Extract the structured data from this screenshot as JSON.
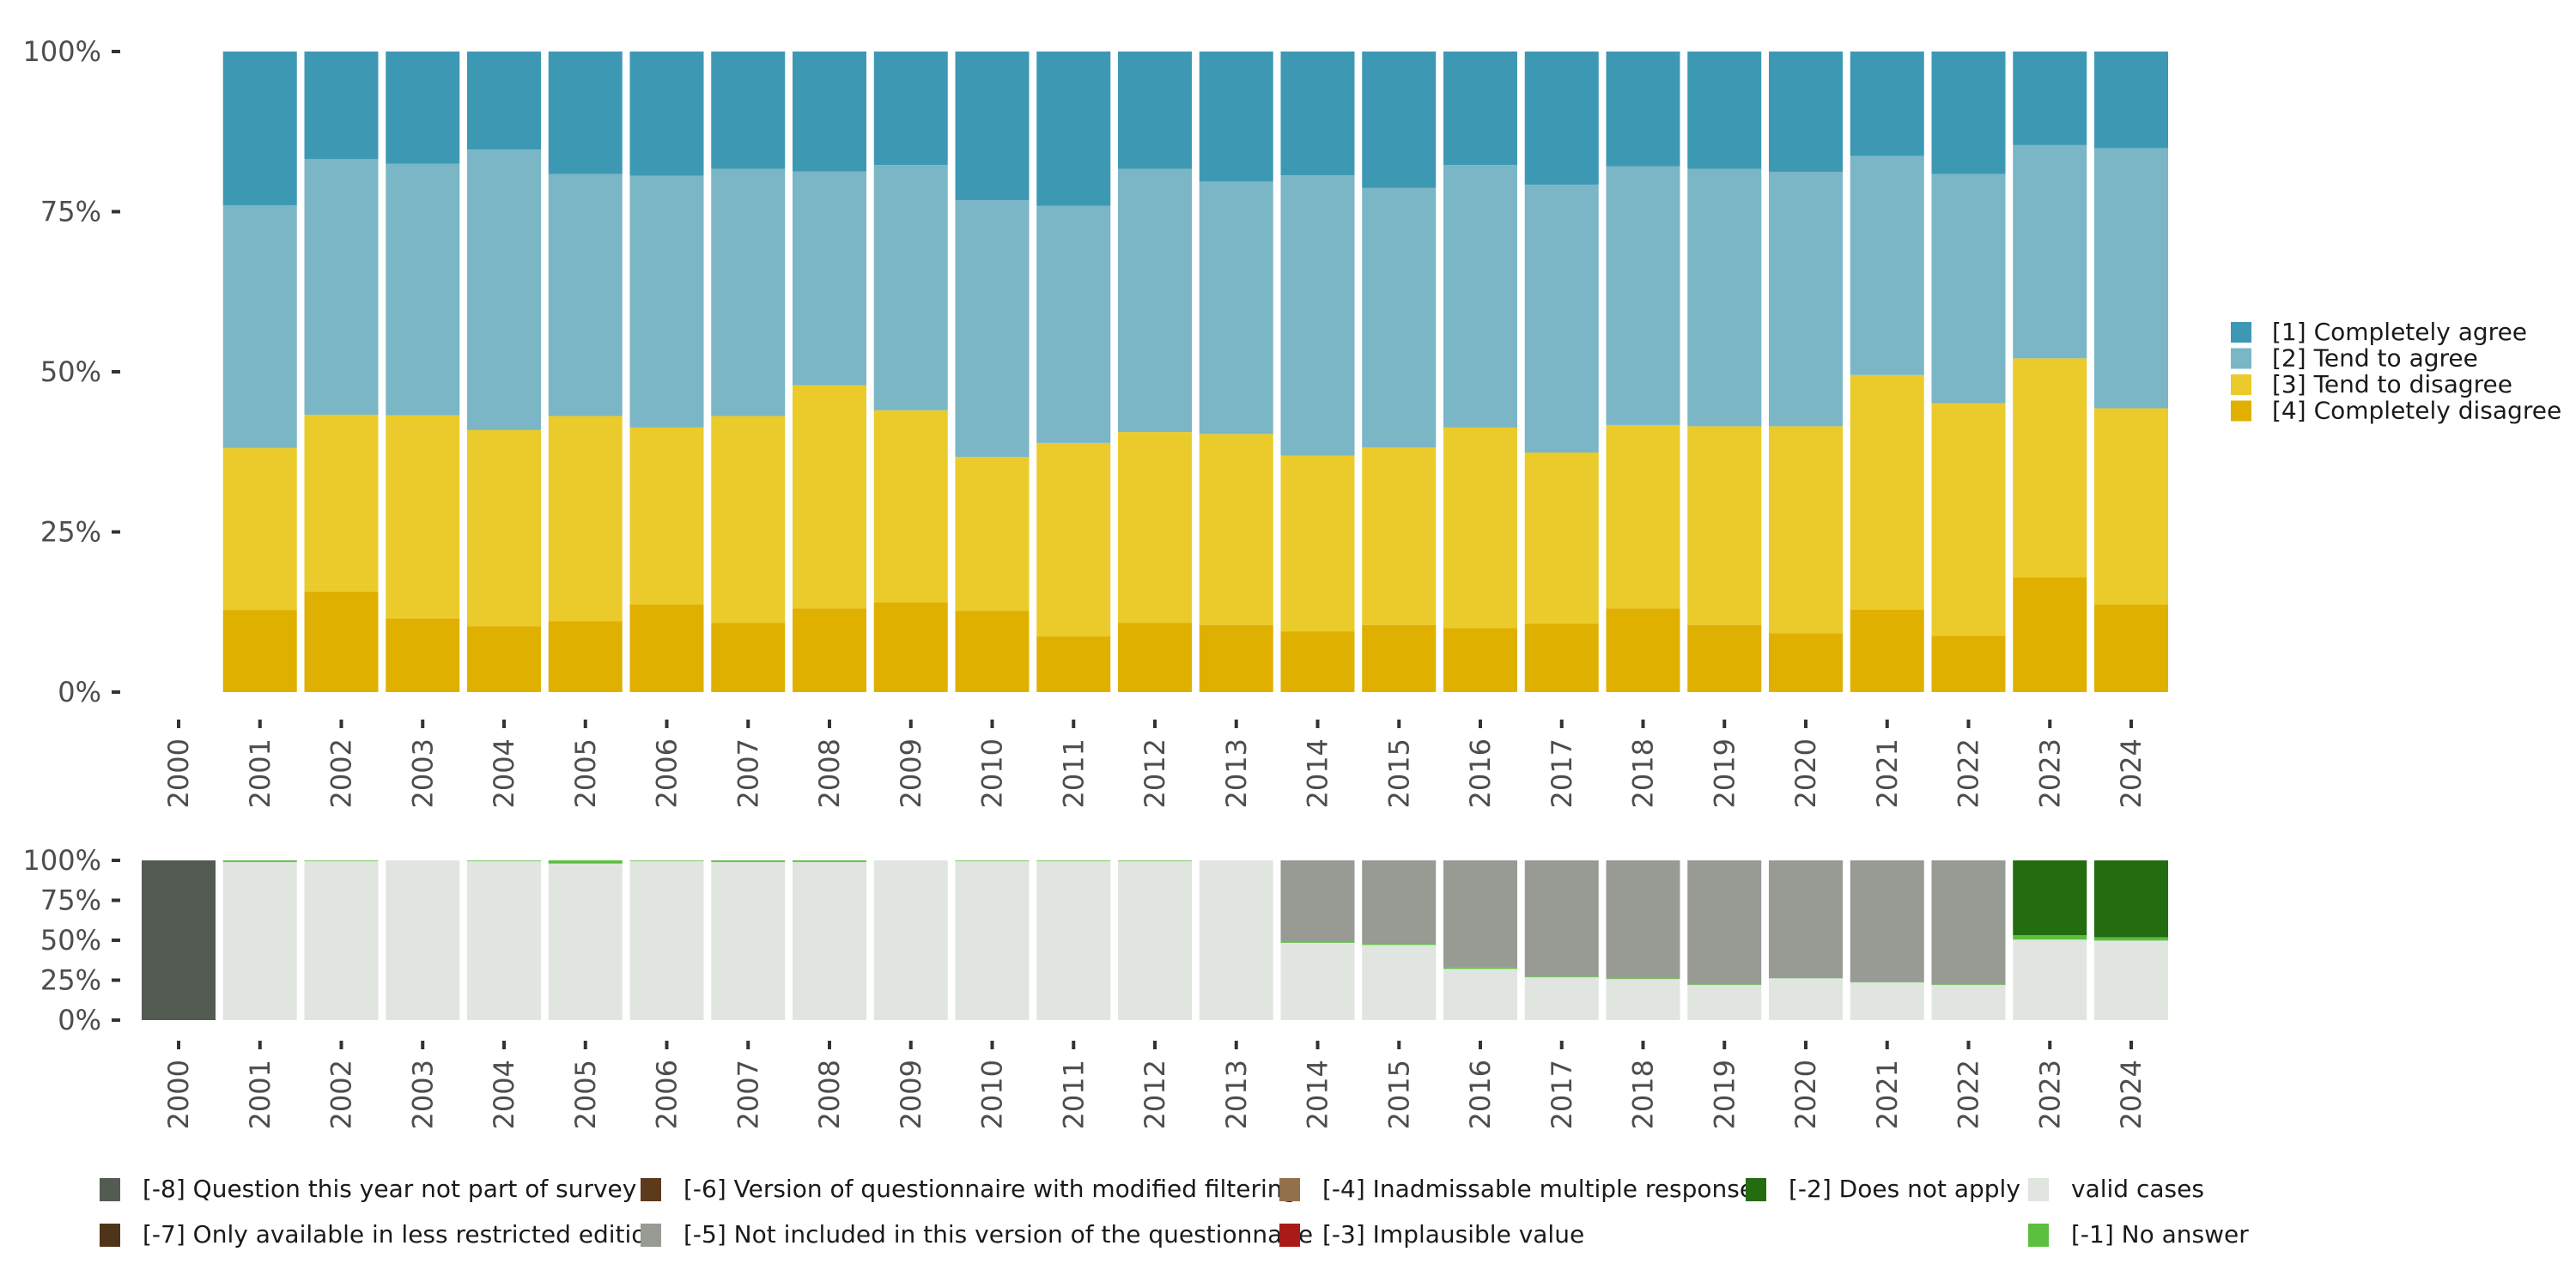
{
  "chart_data": [
    {
      "type": "bar",
      "stacked": true,
      "normalized": true,
      "title": "",
      "xlabel": "",
      "ylabel": "",
      "ylim": [
        0,
        100
      ],
      "grid": false,
      "y_ticks": [
        "0%",
        "25%",
        "50%",
        "75%",
        "100%"
      ],
      "y_tick_values": [
        0,
        25,
        50,
        75,
        100
      ],
      "categories": [
        "2000",
        "2001",
        "2002",
        "2003",
        "2004",
        "2005",
        "2006",
        "2007",
        "2008",
        "2009",
        "2010",
        "2011",
        "2012",
        "2013",
        "2014",
        "2015",
        "2016",
        "2017",
        "2018",
        "2019",
        "2020",
        "2021",
        "2022",
        "2023",
        "2024"
      ],
      "legend_position": "right",
      "series": [
        {
          "name": "[4] Completely disagree",
          "color": "#E0B000",
          "values": [
            null,
            12.8,
            15.7,
            11.5,
            10.3,
            11.1,
            13.7,
            10.8,
            13.1,
            14.0,
            12.7,
            8.7,
            10.8,
            10.5,
            9.5,
            10.5,
            10.0,
            10.7,
            13.1,
            10.5,
            9.2,
            12.9,
            8.8,
            17.9,
            13.7
          ]
        },
        {
          "name": "[3] Tend to disagree",
          "color": "#EACB2B",
          "values": [
            null,
            25.3,
            27.6,
            31.7,
            30.6,
            32.0,
            27.6,
            32.3,
            34.8,
            30.0,
            24.0,
            30.2,
            29.8,
            29.8,
            27.4,
            27.7,
            31.3,
            26.7,
            28.6,
            31.0,
            32.3,
            36.6,
            36.3,
            34.2,
            30.6
          ]
        },
        {
          "name": "[2] Tend to agree",
          "color": "#7AB6C6",
          "values": [
            null,
            37.9,
            39.9,
            39.3,
            43.8,
            37.8,
            39.3,
            38.6,
            33.4,
            38.3,
            40.1,
            37.0,
            41.1,
            39.4,
            43.8,
            40.5,
            41.0,
            41.8,
            40.4,
            40.2,
            39.7,
            34.2,
            35.8,
            33.3,
            40.6
          ]
        },
        {
          "name": "[1] Completely agree",
          "color": "#3D99B3",
          "values": [
            null,
            24.0,
            16.8,
            17.5,
            15.3,
            19.1,
            19.4,
            18.3,
            18.7,
            17.7,
            23.2,
            24.1,
            18.3,
            20.3,
            19.3,
            21.3,
            17.7,
            20.8,
            17.9,
            18.3,
            18.8,
            16.3,
            19.1,
            14.6,
            15.1
          ]
        }
      ]
    },
    {
      "type": "bar",
      "stacked": true,
      "normalized": true,
      "title": "",
      "xlabel": "",
      "ylabel": "",
      "ylim": [
        0,
        100
      ],
      "grid": false,
      "y_ticks": [
        "0%",
        "25%",
        "50%",
        "75%",
        "100%"
      ],
      "y_tick_values": [
        0,
        25,
        50,
        75,
        100
      ],
      "categories": [
        "2000",
        "2001",
        "2002",
        "2003",
        "2004",
        "2005",
        "2006",
        "2007",
        "2008",
        "2009",
        "2010",
        "2011",
        "2012",
        "2013",
        "2014",
        "2015",
        "2016",
        "2017",
        "2018",
        "2019",
        "2020",
        "2021",
        "2022",
        "2023",
        "2024"
      ],
      "legend_position": "bottom",
      "series": [
        {
          "name": "valid cases",
          "color": "#E0E5E0",
          "values": [
            0,
            99.0,
            99.6,
            100,
            99.6,
            98.0,
            99.6,
            99.0,
            99.0,
            100,
            99.6,
            99.6,
            99.6,
            100,
            48.4,
            47.1,
            32.1,
            26.8,
            25.7,
            22.0,
            26.2,
            23.6,
            22.0,
            50.4,
            49.8
          ]
        },
        {
          "name": "[-1] No answer",
          "color": "#5BBF3F",
          "values": [
            0,
            1.0,
            0.4,
            0,
            0.4,
            2.0,
            0.4,
            1.0,
            1.0,
            0,
            0.4,
            0.4,
            0.4,
            0,
            0.5,
            1.0,
            1.1,
            0.5,
            0.5,
            0.4,
            0.4,
            0.4,
            0.4,
            2.7,
            2.1
          ]
        },
        {
          "name": "[-2] Does not apply",
          "color": "#236C10",
          "values": [
            0,
            0,
            0,
            0,
            0,
            0,
            0,
            0,
            0,
            0,
            0,
            0,
            0,
            0,
            0,
            0,
            0,
            0,
            0,
            0,
            0,
            0,
            0,
            46.9,
            48.1
          ]
        },
        {
          "name": "[-3] Implausible value",
          "color": "#A81B17",
          "values": [
            0,
            0,
            0,
            0,
            0,
            0,
            0,
            0,
            0,
            0,
            0,
            0,
            0,
            0,
            0,
            0,
            0,
            0,
            0,
            0,
            0,
            0,
            0,
            0,
            0
          ]
        },
        {
          "name": "[-4] Inadmissable multiple response",
          "color": "#93704C",
          "values": [
            0,
            0,
            0,
            0,
            0,
            0,
            0,
            0,
            0,
            0,
            0,
            0,
            0,
            0,
            0,
            0,
            0,
            0,
            0,
            0,
            0,
            0,
            0,
            0,
            0
          ]
        },
        {
          "name": "[-5] Not included in this version of the questionnaire",
          "color": "#979B94",
          "values": [
            0,
            0,
            0,
            0,
            0,
            0,
            0,
            0,
            0,
            0,
            0,
            0,
            0,
            0,
            51.1,
            51.9,
            66.8,
            72.7,
            73.8,
            77.6,
            73.4,
            76.0,
            77.6,
            0,
            0
          ]
        },
        {
          "name": "[-6] Version of questionnaire with modified filtering",
          "color": "#5C3A1B",
          "values": [
            0,
            0,
            0,
            0,
            0,
            0,
            0,
            0,
            0,
            0,
            0,
            0,
            0,
            0,
            0,
            0,
            0,
            0,
            0,
            0,
            0,
            0,
            0,
            0,
            0
          ]
        },
        {
          "name": "[-7] Only available in less restricted edition",
          "color": "#4E3418",
          "values": [
            0,
            0,
            0,
            0,
            0,
            0,
            0,
            0,
            0,
            0,
            0,
            0,
            0,
            0,
            0,
            0,
            0,
            0,
            0,
            0,
            0,
            0,
            0,
            0,
            0
          ]
        },
        {
          "name": "[-8] Question this year not part of survey",
          "color": "#545B53",
          "values": [
            100,
            0,
            0,
            0,
            0,
            0,
            0,
            0,
            0,
            0,
            0,
            0,
            0,
            0,
            0,
            0,
            0,
            0,
            0,
            0,
            0,
            0,
            0,
            0,
            0
          ]
        }
      ],
      "legend_layout": [
        [
          "[-8] Question this year not part of survey",
          "[-6] Version of questionnaire with modified filtering",
          "[-4] Inadmissable multiple response",
          "[-2] Does not apply",
          "valid cases"
        ],
        [
          "[-7] Only available in less restricted edition",
          "[-5] Not included in this version of the questionnaire",
          "[-3] Implausible value",
          "",
          "[-1] No answer"
        ]
      ]
    }
  ]
}
